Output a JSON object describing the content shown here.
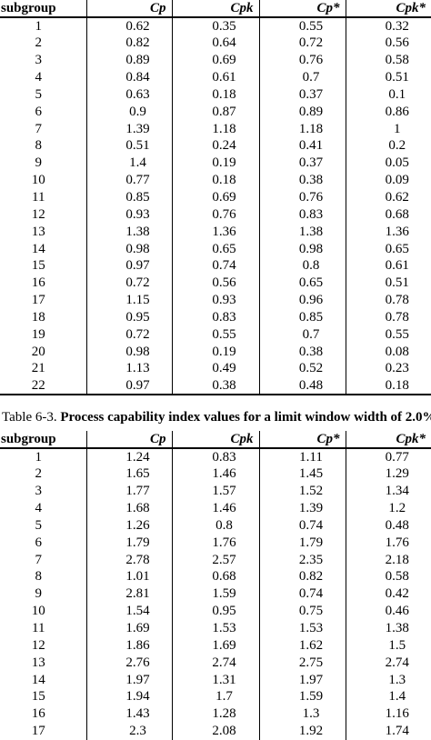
{
  "columns": [
    "subgroup",
    "Cp",
    "Cpk",
    "Cp*",
    "Cpk*"
  ],
  "table_a": {
    "rows": [
      [
        "1",
        "0.62",
        "0.35",
        "0.55",
        "0.32"
      ],
      [
        "2",
        "0.82",
        "0.64",
        "0.72",
        "0.56"
      ],
      [
        "3",
        "0.89",
        "0.69",
        "0.76",
        "0.58"
      ],
      [
        "4",
        "0.84",
        "0.61",
        "0.7",
        "0.51"
      ],
      [
        "5",
        "0.63",
        "0.18",
        "0.37",
        "0.1"
      ],
      [
        "6",
        "0.9",
        "0.87",
        "0.89",
        "0.86"
      ],
      [
        "7",
        "1.39",
        "1.18",
        "1.18",
        "1"
      ],
      [
        "8",
        "0.51",
        "0.24",
        "0.41",
        "0.2"
      ],
      [
        "9",
        "1.4",
        "0.19",
        "0.37",
        "0.05"
      ],
      [
        "10",
        "0.77",
        "0.18",
        "0.38",
        "0.09"
      ],
      [
        "11",
        "0.85",
        "0.69",
        "0.76",
        "0.62"
      ],
      [
        "12",
        "0.93",
        "0.76",
        "0.83",
        "0.68"
      ],
      [
        "13",
        "1.38",
        "1.36",
        "1.38",
        "1.36"
      ],
      [
        "14",
        "0.98",
        "0.65",
        "0.98",
        "0.65"
      ],
      [
        "15",
        "0.97",
        "0.74",
        "0.8",
        "0.61"
      ],
      [
        "16",
        "0.72",
        "0.56",
        "0.65",
        "0.51"
      ],
      [
        "17",
        "1.15",
        "0.93",
        "0.96",
        "0.78"
      ],
      [
        "18",
        "0.95",
        "0.83",
        "0.85",
        "0.78"
      ],
      [
        "19",
        "0.72",
        "0.55",
        "0.7",
        "0.55"
      ],
      [
        "20",
        "0.98",
        "0.19",
        "0.38",
        "0.08"
      ],
      [
        "21",
        "1.13",
        "0.49",
        "0.52",
        "0.23"
      ],
      [
        "22",
        "0.97",
        "0.38",
        "0.48",
        "0.18"
      ]
    ]
  },
  "caption": {
    "prefix": "Table 6-3. ",
    "title": "Process capability index values for a limit window width of 2.0%."
  },
  "table_b": {
    "rows": [
      [
        "1",
        "1.24",
        "0.83",
        "1.11",
        "0.77"
      ],
      [
        "2",
        "1.65",
        "1.46",
        "1.45",
        "1.29"
      ],
      [
        "3",
        "1.77",
        "1.57",
        "1.52",
        "1.34"
      ],
      [
        "4",
        "1.68",
        "1.46",
        "1.39",
        "1.2"
      ],
      [
        "5",
        "1.26",
        "0.8",
        "0.74",
        "0.48"
      ],
      [
        "6",
        "1.79",
        "1.76",
        "1.79",
        "1.76"
      ],
      [
        "7",
        "2.78",
        "2.57",
        "2.35",
        "2.18"
      ],
      [
        "8",
        "1.01",
        "0.68",
        "0.82",
        "0.58"
      ],
      [
        "9",
        "2.81",
        "1.59",
        "0.74",
        "0.42"
      ],
      [
        "10",
        "1.54",
        "0.95",
        "0.75",
        "0.46"
      ],
      [
        "11",
        "1.69",
        "1.53",
        "1.53",
        "1.38"
      ],
      [
        "12",
        "1.86",
        "1.69",
        "1.62",
        "1.5"
      ],
      [
        "13",
        "2.76",
        "2.74",
        "2.75",
        "2.74"
      ],
      [
        "14",
        "1.97",
        "1.31",
        "1.97",
        "1.3"
      ],
      [
        "15",
        "1.94",
        "1.7",
        "1.59",
        "1.4"
      ],
      [
        "16",
        "1.43",
        "1.28",
        "1.3",
        "1.16"
      ],
      [
        "17",
        "2.3",
        "2.08",
        "1.92",
        "1.74"
      ]
    ]
  }
}
